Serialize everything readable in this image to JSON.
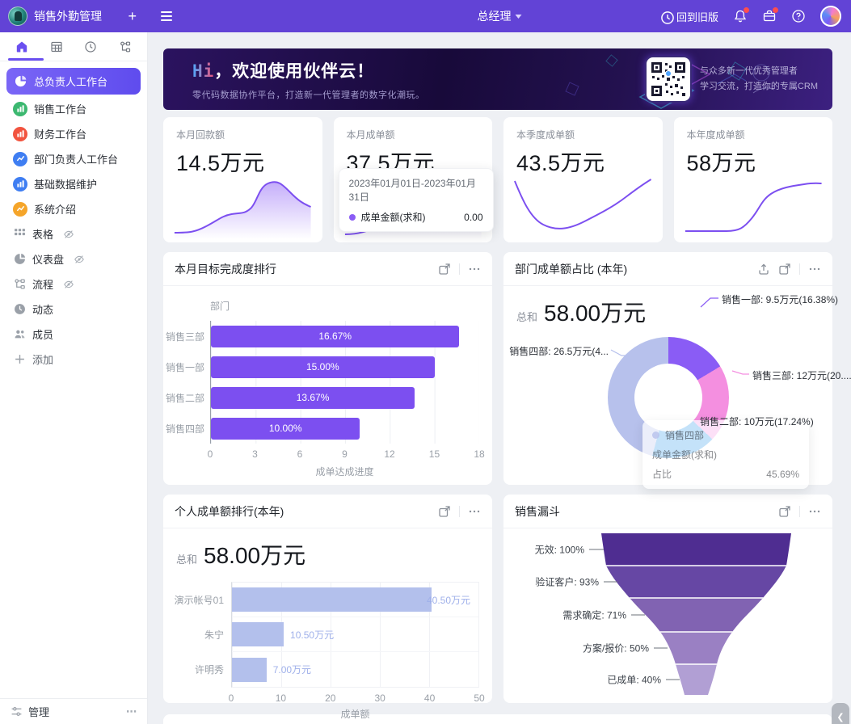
{
  "topbar": {
    "app_title": "销售外勤管理",
    "add": "+",
    "role": "总经理",
    "back_to_old": "回到旧版"
  },
  "sidebar": {
    "items": [
      {
        "label": "总负责人工作台",
        "icon": "pie-chart",
        "color": "#ffffff",
        "active": true
      },
      {
        "label": "销售工作台",
        "icon": "bar-chart",
        "color": "#3cb870"
      },
      {
        "label": "财务工作台",
        "icon": "bar-chart",
        "color": "#f2543f"
      },
      {
        "label": "部门负责人工作台",
        "icon": "line-chart",
        "color": "#3f7ef2"
      },
      {
        "label": "基础数据维护",
        "icon": "bar-chart",
        "color": "#3f7ef2"
      },
      {
        "label": "系统介绍",
        "icon": "line-chart",
        "color": "#f5a52a"
      },
      {
        "label": "表格",
        "icon": "grid",
        "hidden_eye": true
      },
      {
        "label": "仪表盘",
        "icon": "dashboard",
        "hidden_eye": true
      },
      {
        "label": "流程",
        "icon": "flow",
        "hidden_eye": true
      },
      {
        "label": "动态",
        "icon": "clock"
      },
      {
        "label": "成员",
        "icon": "people"
      },
      {
        "label": "添加",
        "icon": "plus"
      }
    ],
    "footer": {
      "manage": "管理",
      "more": "⋯"
    }
  },
  "banner": {
    "hi": "Hi",
    "title": "，欢迎使用伙伴云！",
    "subtitle": "零代码数据协作平台，打造新一代管理者的数字化潮玩。",
    "qr_line1": "与众多新一代优秀管理者",
    "qr_line2": "学习交流，打造你的专属CRM"
  },
  "stats": [
    {
      "label": "本月回款额",
      "value": "14.5万元"
    },
    {
      "label": "本月成单额",
      "value": "37.5万元",
      "tooltip": {
        "date_range": "2023年01月01日-2023年01月31日",
        "series": "成单金额(求和)",
        "value": "0.00"
      }
    },
    {
      "label": "本季度成单额",
      "value": "43.5万元"
    },
    {
      "label": "本年度成单额",
      "value": "58万元"
    }
  ],
  "cards": {
    "target_rank": {
      "title": "本月目标完成度排行"
    },
    "dept_share": {
      "title": "部门成单额占比 (本年)",
      "sum_label": "总和",
      "sum_value": "58.00万元"
    },
    "personal_rank": {
      "title": "个人成单额排行(本年)",
      "sum_label": "总和",
      "sum_value": "58.00万元"
    },
    "funnel": {
      "title": "销售漏斗"
    }
  },
  "chart_data": [
    {
      "id": "spark_payback",
      "type": "area",
      "title": "本月回款额",
      "current_value": "14.5万元",
      "trend_norm": [
        0.05,
        0.06,
        0.1,
        0.28,
        0.35,
        0.37,
        0.4,
        0.75,
        0.88,
        0.78,
        0.55
      ]
    },
    {
      "id": "spark_deal_month",
      "type": "area",
      "title": "本月成单额",
      "current_value": "37.5万元",
      "trend_norm": [
        0.05,
        0.08,
        0.2,
        0.28,
        0.3,
        0.27,
        0.25,
        0.32,
        0.95
      ]
    },
    {
      "id": "spark_deal_quarter",
      "type": "line",
      "title": "本季度成单额",
      "current_value": "43.5万元",
      "trend_norm": [
        0.85,
        0.45,
        0.15,
        0.1,
        0.12,
        0.3,
        0.52,
        0.75,
        0.9
      ]
    },
    {
      "id": "spark_deal_year",
      "type": "line",
      "title": "本年度成单额",
      "current_value": "58万元",
      "trend_norm": [
        0.1,
        0.1,
        0.12,
        0.3,
        0.62,
        0.8,
        0.85,
        0.86
      ]
    },
    {
      "id": "target_rank",
      "type": "bar",
      "title": "本月目标完成度排行",
      "categories": [
        "销售三部",
        "销售一部",
        "销售二部",
        "销售四部"
      ],
      "values": [
        16.67,
        15.0,
        13.67,
        10.0
      ],
      "value_labels": [
        "16.67%",
        "15.00%",
        "13.67%",
        "10.00%"
      ],
      "xlabel": "成单达成进度",
      "ylabel": "部门",
      "xlim": [
        0,
        18
      ],
      "xticks": [
        "0",
        "3",
        "6",
        "9",
        "12",
        "15",
        "18"
      ],
      "bar_color": "#7c4ff0",
      "grid": true
    },
    {
      "id": "dept_share",
      "type": "pie",
      "title": "部门成单额占比 (本年)",
      "total": "58.00万元",
      "slices": [
        {
          "name": "销售一部",
          "label": "销售一部: 9.5万元(16.38%)",
          "pct": 16.38,
          "color": "#8a5cf5"
        },
        {
          "name": "销售三部",
          "label": "销售三部: 12万元(20....",
          "pct": 20.69,
          "color": "#f48fe0"
        },
        {
          "name": "销售二部",
          "label": "销售二部: 10万元(17.24%)",
          "pct": 17.24,
          "color": "#2e97e8"
        },
        {
          "name": "销售四部",
          "label": "销售四部: 26.5万元(4...",
          "pct": 45.69,
          "color": "#b7c1ec"
        }
      ],
      "tooltip": {
        "title": "销售四部",
        "row1_label": "成单金额(求和)",
        "row2_label": "占比",
        "row2_value": "45.69%"
      }
    },
    {
      "id": "personal_rank",
      "type": "bar",
      "title": "个人成单额排行(本年)",
      "total": "58.00万元",
      "categories": [
        "演示帐号01",
        "朱宁",
        "许明秀"
      ],
      "values": [
        40.5,
        10.5,
        7.0
      ],
      "value_labels": [
        "40.50万元",
        "10.50万元",
        "7.00万元"
      ],
      "xlabel": "成单额",
      "xlim": [
        0,
        50
      ],
      "xticks": [
        "0",
        "10",
        "20",
        "30",
        "40",
        "50"
      ],
      "bar_color": "#b3c0ec",
      "grid": true
    },
    {
      "id": "funnel",
      "type": "funnel",
      "title": "销售漏斗",
      "stages": [
        {
          "label": "无效: 100%",
          "pct": 100,
          "color": "#4f2d91"
        },
        {
          "label": "验证客户: 93%",
          "pct": 93,
          "color": "#6647a4"
        },
        {
          "label": "需求确定: 71%",
          "pct": 71,
          "color": "#8163b2"
        },
        {
          "label": "方案/报价: 50%",
          "pct": 50,
          "color": "#9a80c3"
        },
        {
          "label": "已成单: 40%",
          "pct": 40,
          "color": "#b19fd4"
        }
      ]
    }
  ]
}
